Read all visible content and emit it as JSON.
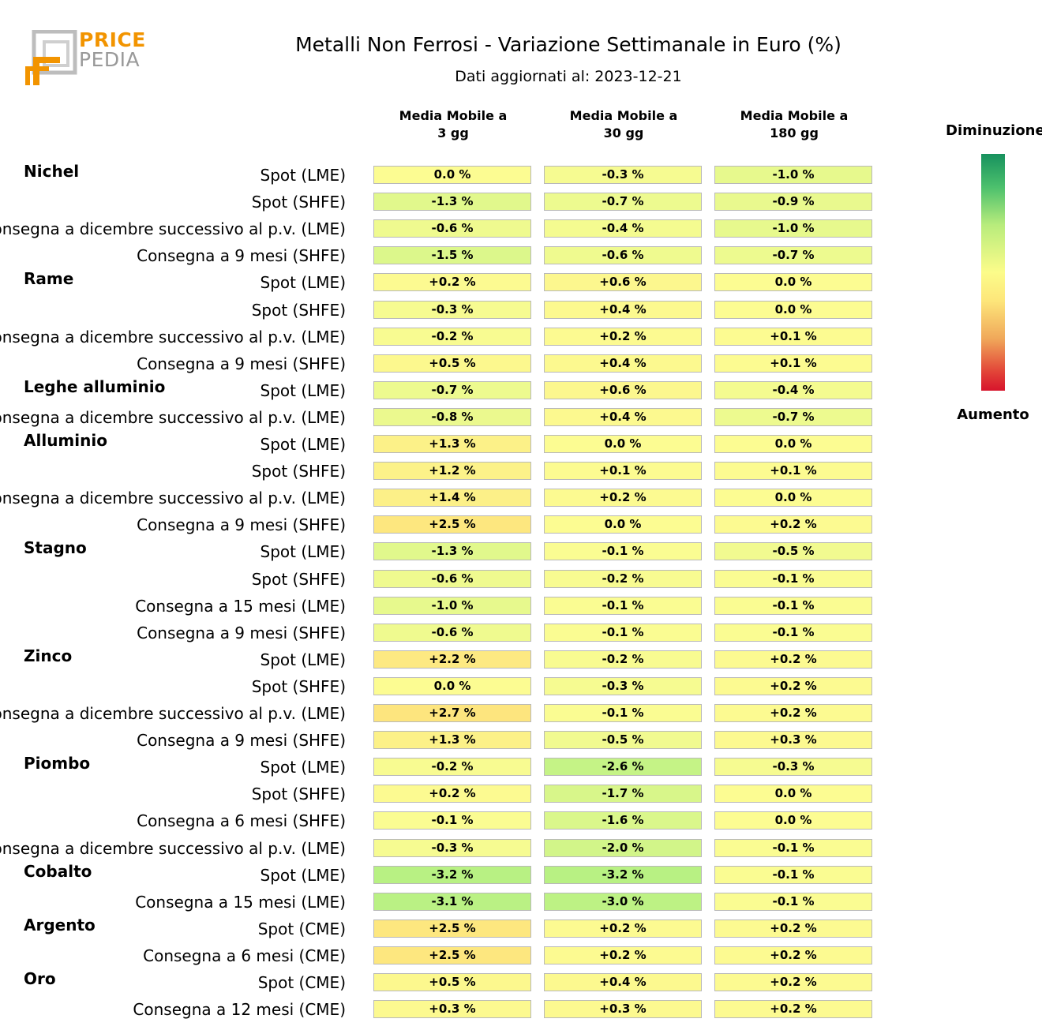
{
  "logo": {
    "price": "PRICE",
    "pedia": "PEDIA"
  },
  "title": "Metalli Non Ferrosi - Variazione Settimanale in Euro (%)",
  "subtitle": "Dati aggiornati al: 2023-12-21",
  "legend": {
    "top": "Diminuzione",
    "bottom": "Aumento"
  },
  "chart_data": {
    "type": "table",
    "columns": [
      {
        "line1": "Media Mobile a",
        "line2": "3 gg"
      },
      {
        "line1": "Media Mobile a",
        "line2": "30 gg"
      },
      {
        "line1": "Media Mobile a",
        "line2": "180 gg"
      }
    ],
    "groups": [
      {
        "name": "Nichel",
        "rows": [
          {
            "label": "Spot (LME)",
            "values": [
              "0.0 %",
              "-0.3 %",
              "-1.0 %"
            ]
          },
          {
            "label": "Spot (SHFE)",
            "values": [
              "-1.3 %",
              "-0.7 %",
              "-0.9 %"
            ]
          },
          {
            "label": "Consegna a dicembre successivo al p.v. (LME)",
            "values": [
              "-0.6 %",
              "-0.4 %",
              "-1.0 %"
            ]
          },
          {
            "label": "Consegna a 9 mesi (SHFE)",
            "values": [
              "-1.5 %",
              "-0.6 %",
              "-0.7 %"
            ]
          }
        ]
      },
      {
        "name": "Rame",
        "rows": [
          {
            "label": "Spot (LME)",
            "values": [
              "+0.2 %",
              "+0.6 %",
              "0.0 %"
            ]
          },
          {
            "label": "Spot (SHFE)",
            "values": [
              "-0.3 %",
              "+0.4 %",
              "0.0 %"
            ]
          },
          {
            "label": "Consegna a dicembre successivo al p.v. (LME)",
            "values": [
              "-0.2 %",
              "+0.2 %",
              "+0.1 %"
            ]
          },
          {
            "label": "Consegna a 9 mesi (SHFE)",
            "values": [
              "+0.5 %",
              "+0.4 %",
              "+0.1 %"
            ]
          }
        ]
      },
      {
        "name": "Leghe alluminio",
        "rows": [
          {
            "label": "Spot (LME)",
            "values": [
              "-0.7 %",
              "+0.6 %",
              "-0.4 %"
            ]
          },
          {
            "label": "Consegna a dicembre successivo al p.v. (LME)",
            "values": [
              "-0.8 %",
              "+0.4 %",
              "-0.7 %"
            ]
          }
        ]
      },
      {
        "name": "Alluminio",
        "rows": [
          {
            "label": "Spot (LME)",
            "values": [
              "+1.3 %",
              "0.0 %",
              "0.0 %"
            ]
          },
          {
            "label": "Spot (SHFE)",
            "values": [
              "+1.2 %",
              "+0.1 %",
              "+0.1 %"
            ]
          },
          {
            "label": "Consegna a dicembre successivo al p.v. (LME)",
            "values": [
              "+1.4 %",
              "+0.2 %",
              "0.0 %"
            ]
          },
          {
            "label": "Consegna a 9 mesi (SHFE)",
            "values": [
              "+2.5 %",
              "0.0 %",
              "+0.2 %"
            ]
          }
        ]
      },
      {
        "name": "Stagno",
        "rows": [
          {
            "label": "Spot (LME)",
            "values": [
              "-1.3 %",
              "-0.1 %",
              "-0.5 %"
            ]
          },
          {
            "label": "Spot (SHFE)",
            "values": [
              "-0.6 %",
              "-0.2 %",
              "-0.1 %"
            ]
          },
          {
            "label": "Consegna a 15 mesi (LME)",
            "values": [
              "-1.0 %",
              "-0.1 %",
              "-0.1 %"
            ]
          },
          {
            "label": "Consegna a 9 mesi (SHFE)",
            "values": [
              "-0.6 %",
              "-0.1 %",
              "-0.1 %"
            ]
          }
        ]
      },
      {
        "name": "Zinco",
        "rows": [
          {
            "label": "Spot (LME)",
            "values": [
              "+2.2 %",
              "-0.2 %",
              "+0.2 %"
            ]
          },
          {
            "label": "Spot (SHFE)",
            "values": [
              "0.0 %",
              "-0.3 %",
              "+0.2 %"
            ]
          },
          {
            "label": "Consegna a dicembre successivo al p.v. (LME)",
            "values": [
              "+2.7 %",
              "-0.1 %",
              "+0.2 %"
            ]
          },
          {
            "label": "Consegna a 9 mesi (SHFE)",
            "values": [
              "+1.3 %",
              "-0.5 %",
              "+0.3 %"
            ]
          }
        ]
      },
      {
        "name": "Piombo",
        "rows": [
          {
            "label": "Spot (LME)",
            "values": [
              "-0.2 %",
              "-2.6 %",
              "-0.3 %"
            ]
          },
          {
            "label": "Spot (SHFE)",
            "values": [
              "+0.2 %",
              "-1.7 %",
              "0.0 %"
            ]
          },
          {
            "label": "Consegna a 6 mesi (SHFE)",
            "values": [
              "-0.1 %",
              "-1.6 %",
              "0.0 %"
            ]
          },
          {
            "label": "Consegna a dicembre successivo al p.v. (LME)",
            "values": [
              "-0.3 %",
              "-2.0 %",
              "-0.1 %"
            ]
          }
        ]
      },
      {
        "name": "Cobalto",
        "rows": [
          {
            "label": "Spot (LME)",
            "values": [
              "-3.2 %",
              "-3.2 %",
              "-0.1 %"
            ]
          },
          {
            "label": "Consegna a 15 mesi (LME)",
            "values": [
              "-3.1 %",
              "-3.0 %",
              "-0.1 %"
            ]
          }
        ]
      },
      {
        "name": "Argento",
        "rows": [
          {
            "label": "Spot (CME)",
            "values": [
              "+2.5 %",
              "+0.2 %",
              "+0.2 %"
            ]
          },
          {
            "label": "Consegna a 6 mesi (CME)",
            "values": [
              "+2.5 %",
              "+0.2 %",
              "+0.2 %"
            ]
          }
        ]
      },
      {
        "name": "Oro",
        "rows": [
          {
            "label": "Spot (CME)",
            "values": [
              "+0.5 %",
              "+0.4 %",
              "+0.2 %"
            ]
          },
          {
            "label": "Consegna a 12 mesi (CME)",
            "values": [
              "+0.3 %",
              "+0.3 %",
              "+0.2 %"
            ]
          }
        ]
      }
    ]
  }
}
